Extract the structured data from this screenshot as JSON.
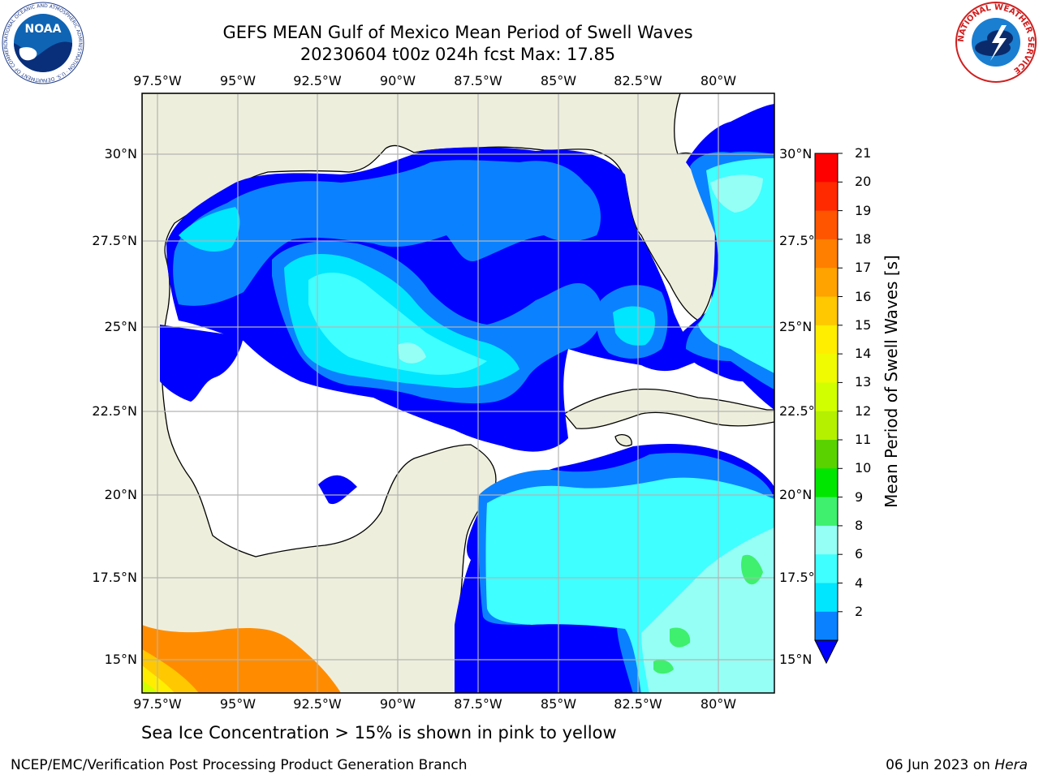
{
  "title": {
    "line1": "GEFS MEAN Gulf of Mexico Mean Period of Swell Waves",
    "line2": "20230604 t00z 024h fcst   Max: 17.85"
  },
  "logos": {
    "noaa_text": "NOAA",
    "noaa_ring": "NATIONAL OCEANIC AND ATMOSPHERIC ADMINISTRATION · U.S. DEPARTMENT OF COMMERCE",
    "nws_ring": "NATIONAL WEATHER SERVICE"
  },
  "axes": {
    "lon_labels": [
      "97.5°W",
      "95°W",
      "92.5°W",
      "90°W",
      "87.5°W",
      "85°W",
      "82.5°W",
      "80°W"
    ],
    "lat_labels_left": [
      "30°N",
      "27.5°N",
      "25°N",
      "22.5°N",
      "20°N",
      "17.5°N",
      "15°N"
    ],
    "lat_labels_right": [
      "30°N",
      "27.5°",
      "25°N",
      "22.5°",
      "20°N",
      "17.5°",
      "15°N"
    ]
  },
  "colorbar": {
    "label": "Mean Period of Swell Waves [s]",
    "ticks": [
      "21",
      "20",
      "19",
      "18",
      "17",
      "16",
      "15",
      "14",
      "13",
      "12",
      "11",
      "10",
      "9",
      "8",
      "6",
      "4",
      "2"
    ],
    "colors": [
      "#ff0000",
      "#ff2a00",
      "#ff5500",
      "#ff7f00",
      "#ffa300",
      "#ffc800",
      "#ffee00",
      "#f0fa00",
      "#d2ff00",
      "#b4f000",
      "#5ad200",
      "#00e600",
      "#3ef06e",
      "#96fff5",
      "#3fffff",
      "#00e6ff",
      "#0a82ff"
    ],
    "extend_color": "#0000ff"
  },
  "chart_data": {
    "type": "heatmap",
    "variable": "Mean Period of Swell Waves [s]",
    "forecast": "20230604 t00z 024h fcst",
    "max": 17.85,
    "lon_range": [
      -98.0,
      -77.0
    ],
    "lat_range": [
      14.0,
      32.0
    ],
    "color_levels": [
      2,
      4,
      6,
      8,
      9,
      10,
      11,
      12,
      13,
      14,
      15,
      16,
      17,
      18,
      19,
      20,
      21
    ],
    "grid": true
  },
  "note": "Sea Ice Concentration > 15% is shown in pink to yellow",
  "footer": {
    "left": "NCEP/EMC/Verification Post Processing Product Generation Branch",
    "date": "06 Jun 2023 on",
    "machine": "Hera"
  }
}
